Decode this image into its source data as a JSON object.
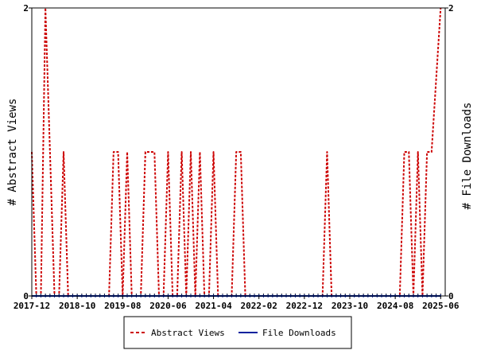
{
  "chart_data": {
    "type": "line",
    "title": "",
    "ylabel": "# Abstract Views",
    "ylabel_right": "# File Downloads",
    "x_tick_labels": [
      "2017-12",
      "2018-10",
      "2019-08",
      "2020-06",
      "2021-04",
      "2022-02",
      "2022-12",
      "2023-10",
      "2024-08",
      "2025-06"
    ],
    "xlim": [
      "2017-12",
      "2025-07"
    ],
    "ylim": [
      0,
      2
    ],
    "y_tick_labels": [
      "0",
      "2"
    ],
    "y2lim": [
      0,
      2
    ],
    "y2_tick_labels": [
      "0",
      "2"
    ],
    "legend_position": "bottom",
    "series": [
      {
        "name": "Abstract Views",
        "color": "#cc0000",
        "style": "dashed",
        "points": [
          [
            "2017-12",
            1
          ],
          [
            "2018-01",
            0
          ],
          [
            "2018-02",
            0
          ],
          [
            "2018-03",
            2
          ],
          [
            "2018-04",
            1
          ],
          [
            "2018-05",
            0
          ],
          [
            "2018-06",
            0
          ],
          [
            "2018-07",
            1
          ],
          [
            "2018-08",
            0
          ],
          [
            "2018-09",
            0
          ],
          [
            "2018-10",
            0
          ],
          [
            "2018-11",
            0
          ],
          [
            "2018-12",
            0
          ],
          [
            "2019-01",
            0
          ],
          [
            "2019-02",
            0
          ],
          [
            "2019-03",
            0
          ],
          [
            "2019-04",
            0
          ],
          [
            "2019-05",
            0
          ],
          [
            "2019-06",
            1
          ],
          [
            "2019-07",
            1
          ],
          [
            "2019-08",
            0
          ],
          [
            "2019-09",
            1
          ],
          [
            "2019-10",
            0
          ],
          [
            "2019-11",
            0
          ],
          [
            "2019-12",
            0
          ],
          [
            "2020-01",
            1
          ],
          [
            "2020-02",
            1
          ],
          [
            "2020-03",
            1
          ],
          [
            "2020-04",
            0
          ],
          [
            "2020-05",
            0
          ],
          [
            "2020-06",
            1
          ],
          [
            "2020-07",
            0
          ],
          [
            "2020-08",
            0
          ],
          [
            "2020-09",
            1
          ],
          [
            "2020-10",
            0
          ],
          [
            "2020-11",
            1
          ],
          [
            "2020-12",
            0
          ],
          [
            "2021-01",
            1
          ],
          [
            "2021-02",
            0
          ],
          [
            "2021-03",
            0
          ],
          [
            "2021-04",
            1
          ],
          [
            "2021-05",
            0
          ],
          [
            "2021-06",
            0
          ],
          [
            "2021-07",
            0
          ],
          [
            "2021-08",
            0
          ],
          [
            "2021-09",
            1
          ],
          [
            "2021-10",
            1
          ],
          [
            "2021-11",
            0
          ],
          [
            "2021-12",
            0
          ],
          [
            "2022-01",
            0
          ],
          [
            "2022-02",
            0
          ],
          [
            "2022-03",
            0
          ],
          [
            "2022-04",
            0
          ],
          [
            "2022-05",
            0
          ],
          [
            "2022-06",
            0
          ],
          [
            "2022-07",
            0
          ],
          [
            "2022-08",
            0
          ],
          [
            "2022-09",
            0
          ],
          [
            "2022-10",
            0
          ],
          [
            "2022-11",
            0
          ],
          [
            "2022-12",
            0
          ],
          [
            "2023-01",
            0
          ],
          [
            "2023-02",
            0
          ],
          [
            "2023-03",
            0
          ],
          [
            "2023-04",
            0
          ],
          [
            "2023-05",
            1
          ],
          [
            "2023-06",
            0
          ],
          [
            "2023-07",
            0
          ],
          [
            "2023-08",
            0
          ],
          [
            "2023-09",
            0
          ],
          [
            "2023-10",
            0
          ],
          [
            "2023-11",
            0
          ],
          [
            "2023-12",
            0
          ],
          [
            "2024-01",
            0
          ],
          [
            "2024-02",
            0
          ],
          [
            "2024-03",
            0
          ],
          [
            "2024-04",
            0
          ],
          [
            "2024-05",
            0
          ],
          [
            "2024-06",
            0
          ],
          [
            "2024-07",
            0
          ],
          [
            "2024-08",
            0
          ],
          [
            "2024-09",
            0
          ],
          [
            "2024-10",
            1
          ],
          [
            "2024-11",
            1
          ],
          [
            "2024-12",
            0
          ],
          [
            "2025-01",
            1
          ],
          [
            "2025-02",
            0
          ],
          [
            "2025-03",
            1
          ],
          [
            "2025-04",
            1
          ],
          [
            "2025-05",
            1.5
          ],
          [
            "2025-06",
            2
          ]
        ]
      },
      {
        "name": "File Downloads",
        "color": "#00229e",
        "style": "solid",
        "points": [
          [
            "2017-12",
            0
          ],
          [
            "2025-06",
            0
          ]
        ]
      }
    ]
  }
}
